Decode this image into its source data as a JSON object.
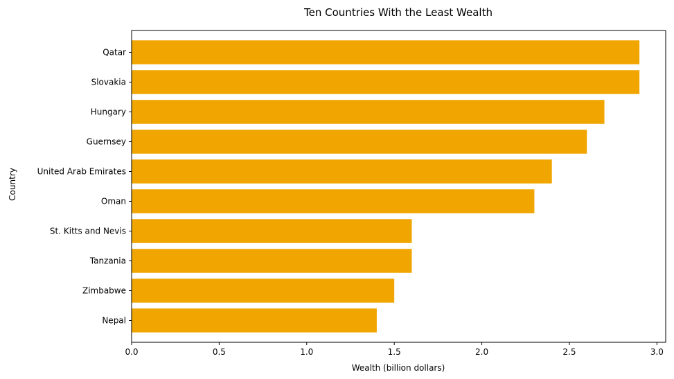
{
  "chart_data": {
    "type": "bar",
    "orientation": "horizontal",
    "title": "Ten Countries With the Least Wealth",
    "xlabel": "Wealth (billion dollars)",
    "ylabel": "Country",
    "categories": [
      "Qatar",
      "Slovakia",
      "Hungary",
      "Guernsey",
      "United Arab Emirates",
      "Oman",
      "St. Kitts and Nevis",
      "Tanzania",
      "Zimbabwe",
      "Nepal"
    ],
    "values": [
      2.9,
      2.9,
      2.7,
      2.6,
      2.4,
      2.3,
      1.6,
      1.6,
      1.5,
      1.4
    ],
    "xlim": [
      0,
      3.05
    ],
    "xticks": [
      0.0,
      0.5,
      1.0,
      1.5,
      2.0,
      2.5,
      3.0
    ],
    "xtick_labels": [
      "0.0",
      "0.5",
      "1.0",
      "1.5",
      "2.0",
      "2.5",
      "3.0"
    ],
    "bar_color": "#f0a500",
    "grid": false,
    "legend": "none"
  }
}
